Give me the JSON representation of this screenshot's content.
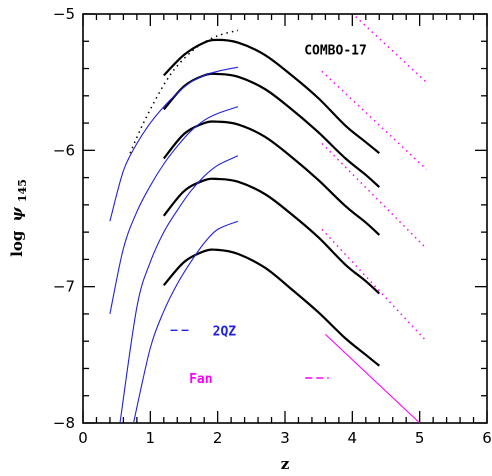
{
  "chart_data": {
    "type": "line",
    "title": "",
    "xlabel": "z",
    "ylabel_text": "log",
    "ylabel_symbol": "ψ",
    "ylabel_subscript": "145",
    "xlim": [
      0,
      6
    ],
    "ylim": [
      -8,
      -5
    ],
    "x_major_ticks": [
      0,
      1,
      2,
      3,
      4,
      5,
      6
    ],
    "x_tick_labels": [
      "0",
      "1",
      "2",
      "3",
      "4",
      "5",
      "6"
    ],
    "y_major_ticks": [
      -8,
      -7,
      -6,
      -5
    ],
    "y_tick_labels": [
      "−8",
      "−7",
      "−6",
      "−5"
    ],
    "grid": false,
    "colors": {
      "combo17": "#000000",
      "qz2": "#2020e0",
      "fan": "#ff00ff"
    },
    "annotations": [
      {
        "text": "COMBO-17",
        "x": 3.75,
        "y": -5.26,
        "color": "#000000"
      },
      {
        "text": "2QZ",
        "x": 2.1,
        "y": -7.32,
        "color": "#2020e0"
      },
      {
        "text": "Fan",
        "x": 1.75,
        "y": -7.67,
        "color": "#ff00ff"
      }
    ],
    "series": [
      {
        "group": "COMBO-17",
        "style": "solid",
        "color": "#000000",
        "x": [
          1.2,
          1.5,
          1.8,
          2.0,
          2.3,
          2.7,
          3.1,
          3.5,
          3.9,
          4.2,
          4.4
        ],
        "y": [
          -5.45,
          -5.3,
          -5.21,
          -5.19,
          -5.21,
          -5.3,
          -5.45,
          -5.62,
          -5.82,
          -5.94,
          -6.02
        ]
      },
      {
        "group": "COMBO-17",
        "style": "solid",
        "color": "#000000",
        "x": [
          1.2,
          1.5,
          1.8,
          2.0,
          2.3,
          2.7,
          3.1,
          3.5,
          3.9,
          4.2,
          4.4
        ],
        "y": [
          -5.7,
          -5.53,
          -5.45,
          -5.44,
          -5.46,
          -5.55,
          -5.7,
          -5.87,
          -6.06,
          -6.18,
          -6.27
        ]
      },
      {
        "group": "COMBO-17",
        "style": "solid",
        "color": "#000000",
        "x": [
          1.2,
          1.5,
          1.8,
          2.0,
          2.3,
          2.7,
          3.1,
          3.5,
          3.9,
          4.2,
          4.4
        ],
        "y": [
          -6.06,
          -5.88,
          -5.8,
          -5.79,
          -5.81,
          -5.9,
          -6.05,
          -6.22,
          -6.41,
          -6.53,
          -6.62
        ]
      },
      {
        "group": "COMBO-17",
        "style": "solid",
        "color": "#000000",
        "x": [
          1.2,
          1.5,
          1.8,
          2.0,
          2.3,
          2.7,
          3.1,
          3.5,
          3.9,
          4.2,
          4.4
        ],
        "y": [
          -6.48,
          -6.3,
          -6.22,
          -6.21,
          -6.23,
          -6.32,
          -6.47,
          -6.64,
          -6.84,
          -6.96,
          -7.05
        ]
      },
      {
        "group": "COMBO-17",
        "style": "solid",
        "color": "#000000",
        "x": [
          1.2,
          1.5,
          1.8,
          2.0,
          2.3,
          2.7,
          3.1,
          3.5,
          3.9,
          4.2,
          4.4
        ],
        "y": [
          -6.99,
          -6.82,
          -6.74,
          -6.73,
          -6.76,
          -6.86,
          -7.02,
          -7.19,
          -7.38,
          -7.5,
          -7.58
        ]
      },
      {
        "group": "COMBO-17",
        "style": "dotted",
        "color": "#000000",
        "x": [
          0.7,
          0.85,
          1.0,
          1.2,
          1.4,
          1.7,
          2.0,
          2.3
        ],
        "y": [
          -6.02,
          -5.85,
          -5.7,
          -5.52,
          -5.38,
          -5.24,
          -5.16,
          -5.12
        ]
      },
      {
        "group": "2QZ",
        "style": "solid",
        "color": "#2020e0",
        "x": [
          0.4,
          0.6,
          0.8,
          1.0,
          1.2,
          1.4,
          1.6,
          1.8,
          2.0,
          2.3
        ],
        "y": [
          -6.52,
          -6.15,
          -5.95,
          -5.8,
          -5.68,
          -5.58,
          -5.5,
          -5.45,
          -5.42,
          -5.39
        ]
      },
      {
        "group": "2QZ",
        "style": "solid",
        "color": "#2020e0",
        "x": [
          0.4,
          0.6,
          0.8,
          1.0,
          1.2,
          1.4,
          1.6,
          1.8,
          2.0,
          2.3
        ],
        "y": [
          -7.2,
          -6.72,
          -6.45,
          -6.26,
          -6.1,
          -5.97,
          -5.86,
          -5.78,
          -5.73,
          -5.68
        ]
      },
      {
        "group": "2QZ",
        "style": "solid",
        "color": "#2020e0",
        "x": [
          0.55,
          0.8,
          1.0,
          1.2,
          1.4,
          1.6,
          1.8,
          2.0,
          2.3
        ],
        "y": [
          -8.0,
          -7.15,
          -6.82,
          -6.6,
          -6.44,
          -6.3,
          -6.19,
          -6.11,
          -6.04
        ]
      },
      {
        "group": "2QZ",
        "style": "solid",
        "color": "#2020e0",
        "x": [
          0.75,
          1.0,
          1.2,
          1.4,
          1.6,
          1.8,
          2.0,
          2.3
        ],
        "y": [
          -8.0,
          -7.45,
          -7.18,
          -6.98,
          -6.82,
          -6.68,
          -6.58,
          -6.52
        ]
      },
      {
        "group": "Fan",
        "style": "solid",
        "color": "#ff00ff",
        "x": [
          3.6,
          5.0
        ],
        "y": [
          -7.35,
          -8.0
        ]
      },
      {
        "group": "Fan",
        "style": "dotted",
        "color": "#ff00ff",
        "x": [
          4.05,
          5.1
        ],
        "y": [
          -5.02,
          -5.5
        ]
      },
      {
        "group": "Fan",
        "style": "dotted",
        "color": "#ff00ff",
        "x": [
          3.55,
          5.1
        ],
        "y": [
          -5.42,
          -6.14
        ]
      },
      {
        "group": "Fan",
        "style": "dotted",
        "color": "#ff00ff",
        "x": [
          3.55,
          5.1
        ],
        "y": [
          -5.95,
          -6.72
        ]
      },
      {
        "group": "Fan",
        "style": "dotted",
        "color": "#ff00ff",
        "x": [
          3.55,
          5.1
        ],
        "y": [
          -6.58,
          -7.4
        ]
      }
    ],
    "legend_keys": [
      {
        "group": "2QZ",
        "color": "#2020e0",
        "x": [
          1.3,
          1.6
        ],
        "y": [
          -7.32,
          -7.32
        ]
      },
      {
        "group": "Fan",
        "color": "#ff00ff",
        "x": [
          3.3,
          3.65
        ],
        "y": [
          -7.67,
          -7.67
        ]
      }
    ]
  }
}
